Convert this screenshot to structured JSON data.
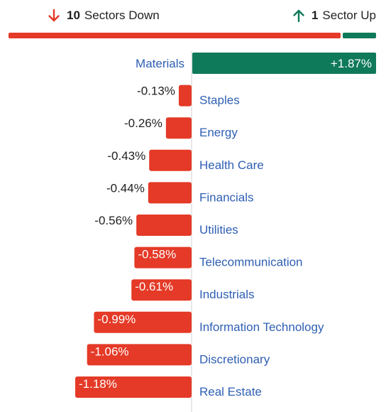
{
  "summary": {
    "down_count": "10",
    "down_label": "Sectors Down",
    "up_count": "1",
    "up_label": "Sector Up"
  },
  "colors": {
    "negative": "#e43a27",
    "positive": "#0f7a5a",
    "sector_label": "#2f5fb3",
    "value_text": "#222222"
  },
  "icons": {
    "down": "arrow-down-icon",
    "up": "arrow-up-icon"
  },
  "chart_data": {
    "type": "bar",
    "orientation": "horizontal",
    "categories": [
      "Materials",
      "Staples",
      "Energy",
      "Health Care",
      "Financials",
      "Utilities",
      "Telecommunication",
      "Industrials",
      "Information Technology",
      "Discretionary",
      "Real Estate"
    ],
    "values": [
      1.87,
      -0.13,
      -0.26,
      -0.43,
      -0.44,
      -0.56,
      -0.58,
      -0.61,
      -0.99,
      -1.06,
      -1.18
    ],
    "value_labels": [
      "+1.87%",
      "-0.13%",
      "-0.26%",
      "-0.43%",
      "-0.44%",
      "-0.56%",
      "-0.58%",
      "-0.61%",
      "-0.99%",
      "-1.06%",
      "-1.18%"
    ],
    "units": "%"
  }
}
